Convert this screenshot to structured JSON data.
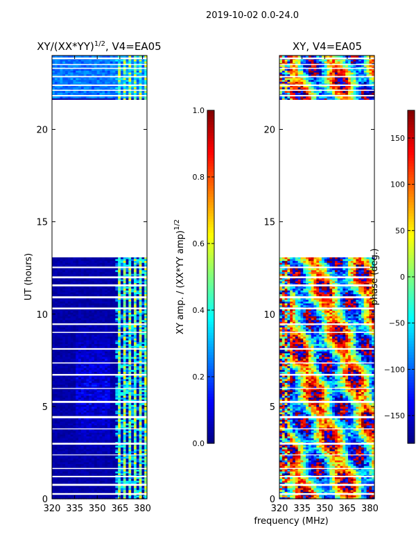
{
  "figure_title": "2019-10-02 0.0-24.0",
  "chart_data": [
    {
      "type": "heatmap",
      "title_main": "XY/(XX*YY)",
      "title_exp": "1/2",
      "title_tail": ", V4=EA05",
      "xlabel": "",
      "ylabel": "UT (hours)",
      "xlim": [
        320,
        383
      ],
      "ylim": [
        0,
        24
      ],
      "xticks": [
        320,
        335,
        350,
        365,
        380
      ],
      "yticks": [
        0,
        5,
        10,
        15,
        20
      ],
      "colormap": "jet",
      "colorbar": {
        "label_main": "XY amp. / (XX*YY amp)",
        "label_exp": "1/2",
        "range": [
          0.0,
          1.0
        ],
        "ticks": [
          0.0,
          0.2,
          0.4,
          0.6,
          0.8,
          1.0
        ],
        "tick_labels": [
          "0.0",
          "0.2",
          "0.4",
          "0.6",
          "0.8",
          "1.0"
        ]
      },
      "data_gap_hours": [
        13.1,
        21.6
      ],
      "description_values": {
        "background_amp": 0.02,
        "rfi_band_mhz": [
          361,
          383
        ],
        "rfi_amp_range": [
          0.3,
          0.65
        ]
      }
    },
    {
      "type": "heatmap",
      "title_main": "XY, V4=EA05",
      "xlabel": "frequency (MHz)",
      "ylabel": "",
      "xlim": [
        320,
        383
      ],
      "ylim": [
        0,
        24
      ],
      "xticks": [
        320,
        335,
        350,
        365,
        380
      ],
      "yticks": [
        0,
        5,
        10,
        15,
        20
      ],
      "colormap": "jet",
      "colorbar": {
        "label": "phase (deg.)",
        "range": [
          -180,
          180
        ],
        "ticks": [
          -150,
          -100,
          -50,
          0,
          50,
          100,
          150
        ],
        "tick_labels": [
          "−150",
          "−100",
          "−50",
          "0",
          "50",
          "100",
          "150"
        ]
      },
      "data_gap_hours": [
        13.1,
        21.6
      ]
    }
  ],
  "colors": {
    "jet": [
      "#00007f",
      "#0000ff",
      "#007fff",
      "#00ffff",
      "#7fff7f",
      "#ffff00",
      "#ff7f00",
      "#ff0000",
      "#7f0000"
    ]
  }
}
